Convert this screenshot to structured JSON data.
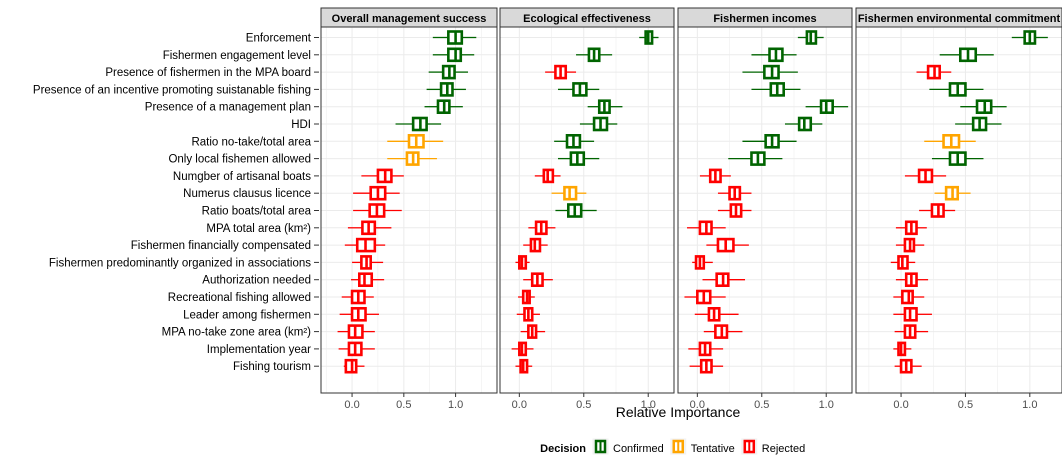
{
  "chart_data": {
    "type": "boxplot",
    "xlabel": "Relative Importance",
    "legend": {
      "title": "Decision",
      "position": "bottom",
      "entries": [
        {
          "label": "Confirmed",
          "color": "#006400"
        },
        {
          "label": "Tentative",
          "color": "#FFA500"
        },
        {
          "label": "Rejected",
          "color": "#FF0000"
        }
      ]
    },
    "colors": {
      "Confirmed": "#006400",
      "Tentative": "#FFA500",
      "Rejected": "#FF0000",
      "panel_background": "#FFFFFF",
      "grid": "#EBEBEB",
      "strip": "#D9D9D9"
    },
    "grid": true,
    "variables": [
      "Enforcement",
      "Fishermen engagement level",
      "Presence of fishermen in the MPA board",
      "Presence of an incentive promoting suistanable fishing",
      "Presence of a management plan",
      "HDI",
      "Ratio no-take/total area",
      "Only local fishemen allowed",
      "Numgber of artisanal boats",
      "Numerus clausus licence",
      "Ratio boats/total area",
      "MPA total area (km²)",
      "Fishermen financially compensated",
      "Fishermen predominantly organized in associations",
      "Authorization needed",
      "Recreational fishing allowed",
      "Leader among fishermen",
      "MPA no-take zone area (km²)",
      "Implementation year",
      "Fishing tourism"
    ],
    "panels": [
      {
        "title": "Overall management success",
        "xlim": [
          -0.3,
          1.4
        ],
        "xticks": [
          0.0,
          0.5,
          1.0
        ],
        "xtick_labels": [
          "0.0",
          "0.5",
          "1.0"
        ],
        "boxes": [
          {
            "wlo": 0.78,
            "q1": 0.93,
            "med": 1.0,
            "q3": 1.06,
            "whi": 1.2,
            "decision": "Confirmed"
          },
          {
            "wlo": 0.78,
            "q1": 0.93,
            "med": 1.0,
            "q3": 1.05,
            "whi": 1.18,
            "decision": "Confirmed"
          },
          {
            "wlo": 0.74,
            "q1": 0.88,
            "med": 0.94,
            "q3": 0.99,
            "whi": 1.12,
            "decision": "Confirmed"
          },
          {
            "wlo": 0.72,
            "q1": 0.86,
            "med": 0.92,
            "q3": 0.97,
            "whi": 1.1,
            "decision": "Confirmed"
          },
          {
            "wlo": 0.7,
            "q1": 0.83,
            "med": 0.89,
            "q3": 0.94,
            "whi": 1.07,
            "decision": "Confirmed"
          },
          {
            "wlo": 0.42,
            "q1": 0.59,
            "med": 0.66,
            "q3": 0.72,
            "whi": 0.86,
            "decision": "Confirmed"
          },
          {
            "wlo": 0.34,
            "q1": 0.55,
            "med": 0.62,
            "q3": 0.69,
            "whi": 0.88,
            "decision": "Tentative"
          },
          {
            "wlo": 0.34,
            "q1": 0.53,
            "med": 0.59,
            "q3": 0.64,
            "whi": 0.82,
            "decision": "Tentative"
          },
          {
            "wlo": 0.09,
            "q1": 0.25,
            "med": 0.32,
            "q3": 0.38,
            "whi": 0.5,
            "decision": "Rejected"
          },
          {
            "wlo": 0.01,
            "q1": 0.18,
            "med": 0.25,
            "q3": 0.32,
            "whi": 0.46,
            "decision": "Rejected"
          },
          {
            "wlo": 0.01,
            "q1": 0.17,
            "med": 0.24,
            "q3": 0.31,
            "whi": 0.48,
            "decision": "Rejected"
          },
          {
            "wlo": -0.04,
            "q1": 0.1,
            "med": 0.16,
            "q3": 0.22,
            "whi": 0.38,
            "decision": "Rejected"
          },
          {
            "wlo": -0.07,
            "q1": 0.05,
            "med": 0.13,
            "q3": 0.22,
            "whi": 0.32,
            "decision": "Rejected"
          },
          {
            "wlo": 0.0,
            "q1": 0.09,
            "med": 0.14,
            "q3": 0.18,
            "whi": 0.3,
            "decision": "Rejected"
          },
          {
            "wlo": -0.01,
            "q1": 0.07,
            "med": 0.12,
            "q3": 0.19,
            "whi": 0.31,
            "decision": "Rejected"
          },
          {
            "wlo": -0.1,
            "q1": 0.0,
            "med": 0.06,
            "q3": 0.12,
            "whi": 0.21,
            "decision": "Rejected"
          },
          {
            "wlo": -0.12,
            "q1": 0.0,
            "med": 0.06,
            "q3": 0.13,
            "whi": 0.26,
            "decision": "Rejected"
          },
          {
            "wlo": -0.14,
            "q1": -0.03,
            "med": 0.03,
            "q3": 0.1,
            "whi": 0.22,
            "decision": "Rejected"
          },
          {
            "wlo": -0.13,
            "q1": -0.03,
            "med": 0.03,
            "q3": 0.09,
            "whi": 0.22,
            "decision": "Rejected"
          },
          {
            "wlo": -0.08,
            "q1": -0.06,
            "med": 0.0,
            "q3": 0.04,
            "whi": 0.12,
            "decision": "Rejected"
          }
        ]
      },
      {
        "title": "Ecological effectiveness",
        "xlim": [
          -0.15,
          1.2
        ],
        "xticks": [
          0.0,
          0.5,
          1.0
        ],
        "xtick_labels": [
          "0.0",
          "0.5",
          "1.0"
        ],
        "boxes": [
          {
            "wlo": 0.93,
            "q1": 0.98,
            "med": 1.0,
            "q3": 1.03,
            "whi": 1.08,
            "decision": "Confirmed"
          },
          {
            "wlo": 0.44,
            "q1": 0.54,
            "med": 0.58,
            "q3": 0.62,
            "whi": 0.72,
            "decision": "Confirmed"
          },
          {
            "wlo": 0.2,
            "q1": 0.28,
            "med": 0.32,
            "q3": 0.36,
            "whi": 0.44,
            "decision": "Rejected"
          },
          {
            "wlo": 0.3,
            "q1": 0.42,
            "med": 0.47,
            "q3": 0.52,
            "whi": 0.62,
            "decision": "Confirmed"
          },
          {
            "wlo": 0.53,
            "q1": 0.62,
            "med": 0.66,
            "q3": 0.7,
            "whi": 0.8,
            "decision": "Confirmed"
          },
          {
            "wlo": 0.47,
            "q1": 0.58,
            "med": 0.63,
            "q3": 0.68,
            "whi": 0.76,
            "decision": "Confirmed"
          },
          {
            "wlo": 0.27,
            "q1": 0.37,
            "med": 0.42,
            "q3": 0.47,
            "whi": 0.58,
            "decision": "Confirmed"
          },
          {
            "wlo": 0.3,
            "q1": 0.4,
            "med": 0.45,
            "q3": 0.5,
            "whi": 0.62,
            "decision": "Confirmed"
          },
          {
            "wlo": 0.12,
            "q1": 0.19,
            "med": 0.22,
            "q3": 0.26,
            "whi": 0.32,
            "decision": "Rejected"
          },
          {
            "wlo": 0.25,
            "q1": 0.35,
            "med": 0.39,
            "q3": 0.44,
            "whi": 0.52,
            "decision": "Tentative"
          },
          {
            "wlo": 0.28,
            "q1": 0.38,
            "med": 0.43,
            "q3": 0.48,
            "whi": 0.6,
            "decision": "Confirmed"
          },
          {
            "wlo": 0.07,
            "q1": 0.13,
            "med": 0.17,
            "q3": 0.21,
            "whi": 0.28,
            "decision": "Rejected"
          },
          {
            "wlo": 0.03,
            "q1": 0.09,
            "med": 0.12,
            "q3": 0.16,
            "whi": 0.22,
            "decision": "Rejected"
          },
          {
            "wlo": -0.03,
            "q1": 0.0,
            "med": 0.02,
            "q3": 0.05,
            "whi": 0.08,
            "decision": "Rejected"
          },
          {
            "wlo": 0.03,
            "q1": 0.1,
            "med": 0.14,
            "q3": 0.18,
            "whi": 0.26,
            "decision": "Rejected"
          },
          {
            "wlo": -0.01,
            "q1": 0.03,
            "med": 0.06,
            "q3": 0.08,
            "whi": 0.12,
            "decision": "Rejected"
          },
          {
            "wlo": -0.02,
            "q1": 0.04,
            "med": 0.07,
            "q3": 0.1,
            "whi": 0.16,
            "decision": "Rejected"
          },
          {
            "wlo": 0.01,
            "q1": 0.07,
            "med": 0.1,
            "q3": 0.13,
            "whi": 0.2,
            "decision": "Rejected"
          },
          {
            "wlo": -0.06,
            "q1": 0.0,
            "med": 0.02,
            "q3": 0.05,
            "whi": 0.11,
            "decision": "Rejected"
          },
          {
            "wlo": -0.03,
            "q1": 0.01,
            "med": 0.03,
            "q3": 0.06,
            "whi": 0.1,
            "decision": "Rejected"
          }
        ]
      },
      {
        "title": "Fishermen incomes",
        "xlim": [
          -0.15,
          1.2
        ],
        "xticks": [
          0.0,
          0.5,
          1.0
        ],
        "xtick_labels": [
          "0.0",
          "0.5",
          "1.0"
        ],
        "boxes": [
          {
            "wlo": 0.78,
            "q1": 0.85,
            "med": 0.88,
            "q3": 0.92,
            "whi": 0.98,
            "decision": "Confirmed"
          },
          {
            "wlo": 0.42,
            "q1": 0.56,
            "med": 0.61,
            "q3": 0.66,
            "whi": 0.77,
            "decision": "Confirmed"
          },
          {
            "wlo": 0.35,
            "q1": 0.52,
            "med": 0.58,
            "q3": 0.63,
            "whi": 0.78,
            "decision": "Confirmed"
          },
          {
            "wlo": 0.42,
            "q1": 0.57,
            "med": 0.62,
            "q3": 0.67,
            "whi": 0.8,
            "decision": "Confirmed"
          },
          {
            "wlo": 0.84,
            "q1": 0.96,
            "med": 1.0,
            "q3": 1.05,
            "whi": 1.17,
            "decision": "Confirmed"
          },
          {
            "wlo": 0.68,
            "q1": 0.79,
            "med": 0.83,
            "q3": 0.88,
            "whi": 0.97,
            "decision": "Confirmed"
          },
          {
            "wlo": 0.35,
            "q1": 0.53,
            "med": 0.58,
            "q3": 0.63,
            "whi": 0.77,
            "decision": "Confirmed"
          },
          {
            "wlo": 0.24,
            "q1": 0.42,
            "med": 0.47,
            "q3": 0.52,
            "whi": 0.66,
            "decision": "Confirmed"
          },
          {
            "wlo": 0.02,
            "q1": 0.1,
            "med": 0.14,
            "q3": 0.18,
            "whi": 0.26,
            "decision": "Rejected"
          },
          {
            "wlo": 0.16,
            "q1": 0.25,
            "med": 0.29,
            "q3": 0.33,
            "whi": 0.42,
            "decision": "Rejected"
          },
          {
            "wlo": 0.16,
            "q1": 0.26,
            "med": 0.3,
            "q3": 0.34,
            "whi": 0.42,
            "decision": "Rejected"
          },
          {
            "wlo": -0.08,
            "q1": 0.02,
            "med": 0.07,
            "q3": 0.11,
            "whi": 0.22,
            "decision": "Rejected"
          },
          {
            "wlo": 0.07,
            "q1": 0.16,
            "med": 0.22,
            "q3": 0.28,
            "whi": 0.4,
            "decision": "Rejected"
          },
          {
            "wlo": -0.04,
            "q1": -0.01,
            "med": 0.02,
            "q3": 0.05,
            "whi": 0.12,
            "decision": "Rejected"
          },
          {
            "wlo": 0.04,
            "q1": 0.15,
            "med": 0.2,
            "q3": 0.24,
            "whi": 0.37,
            "decision": "Rejected"
          },
          {
            "wlo": -0.1,
            "q1": 0.0,
            "med": 0.05,
            "q3": 0.1,
            "whi": 0.22,
            "decision": "Rejected"
          },
          {
            "wlo": -0.02,
            "q1": 0.09,
            "med": 0.13,
            "q3": 0.17,
            "whi": 0.32,
            "decision": "Rejected"
          },
          {
            "wlo": 0.05,
            "q1": 0.14,
            "med": 0.19,
            "q3": 0.23,
            "whi": 0.35,
            "decision": "Rejected"
          },
          {
            "wlo": -0.07,
            "q1": 0.02,
            "med": 0.06,
            "q3": 0.1,
            "whi": 0.2,
            "decision": "Rejected"
          },
          {
            "wlo": -0.06,
            "q1": 0.03,
            "med": 0.07,
            "q3": 0.11,
            "whi": 0.2,
            "decision": "Rejected"
          }
        ]
      },
      {
        "title": "Fishermen environmental commitment",
        "xlim": [
          -0.35,
          1.25
        ],
        "xticks": [
          0.0,
          0.5,
          1.0
        ],
        "xtick_labels": [
          "0.0",
          "0.5",
          "1.0"
        ],
        "boxes": [
          {
            "wlo": 0.86,
            "q1": 0.96,
            "med": 1.0,
            "q3": 1.04,
            "whi": 1.14,
            "decision": "Confirmed"
          },
          {
            "wlo": 0.3,
            "q1": 0.46,
            "med": 0.52,
            "q3": 0.58,
            "whi": 0.72,
            "decision": "Confirmed"
          },
          {
            "wlo": 0.12,
            "q1": 0.21,
            "med": 0.26,
            "q3": 0.3,
            "whi": 0.39,
            "decision": "Rejected"
          },
          {
            "wlo": 0.22,
            "q1": 0.38,
            "med": 0.44,
            "q3": 0.5,
            "whi": 0.64,
            "decision": "Confirmed"
          },
          {
            "wlo": 0.46,
            "q1": 0.59,
            "med": 0.65,
            "q3": 0.7,
            "whi": 0.82,
            "decision": "Confirmed"
          },
          {
            "wlo": 0.42,
            "q1": 0.56,
            "med": 0.61,
            "q3": 0.66,
            "whi": 0.78,
            "decision": "Confirmed"
          },
          {
            "wlo": 0.18,
            "q1": 0.33,
            "med": 0.39,
            "q3": 0.45,
            "whi": 0.58,
            "decision": "Tentative"
          },
          {
            "wlo": 0.24,
            "q1": 0.38,
            "med": 0.44,
            "q3": 0.5,
            "whi": 0.64,
            "decision": "Confirmed"
          },
          {
            "wlo": 0.03,
            "q1": 0.14,
            "med": 0.19,
            "q3": 0.24,
            "whi": 0.35,
            "decision": "Rejected"
          },
          {
            "wlo": 0.26,
            "q1": 0.35,
            "med": 0.4,
            "q3": 0.44,
            "whi": 0.54,
            "decision": "Tentative"
          },
          {
            "wlo": 0.14,
            "q1": 0.24,
            "med": 0.29,
            "q3": 0.33,
            "whi": 0.42,
            "decision": "Rejected"
          },
          {
            "wlo": -0.04,
            "q1": 0.04,
            "med": 0.08,
            "q3": 0.12,
            "whi": 0.2,
            "decision": "Rejected"
          },
          {
            "wlo": -0.04,
            "q1": 0.03,
            "med": 0.07,
            "q3": 0.1,
            "whi": 0.18,
            "decision": "Rejected"
          },
          {
            "wlo": -0.08,
            "q1": -0.02,
            "med": 0.01,
            "q3": 0.05,
            "whi": 0.11,
            "decision": "Rejected"
          },
          {
            "wlo": -0.04,
            "q1": 0.04,
            "med": 0.08,
            "q3": 0.12,
            "whi": 0.21,
            "decision": "Rejected"
          },
          {
            "wlo": -0.06,
            "q1": 0.01,
            "med": 0.06,
            "q3": 0.09,
            "whi": 0.18,
            "decision": "Rejected"
          },
          {
            "wlo": -0.06,
            "q1": 0.03,
            "med": 0.07,
            "q3": 0.12,
            "whi": 0.24,
            "decision": "Rejected"
          },
          {
            "wlo": -0.05,
            "q1": 0.03,
            "med": 0.07,
            "q3": 0.11,
            "whi": 0.21,
            "decision": "Rejected"
          },
          {
            "wlo": -0.06,
            "q1": -0.02,
            "med": 0.0,
            "q3": 0.03,
            "whi": 0.08,
            "decision": "Rejected"
          },
          {
            "wlo": -0.05,
            "q1": 0.0,
            "med": 0.04,
            "q3": 0.08,
            "whi": 0.16,
            "decision": "Rejected"
          }
        ]
      }
    ]
  }
}
